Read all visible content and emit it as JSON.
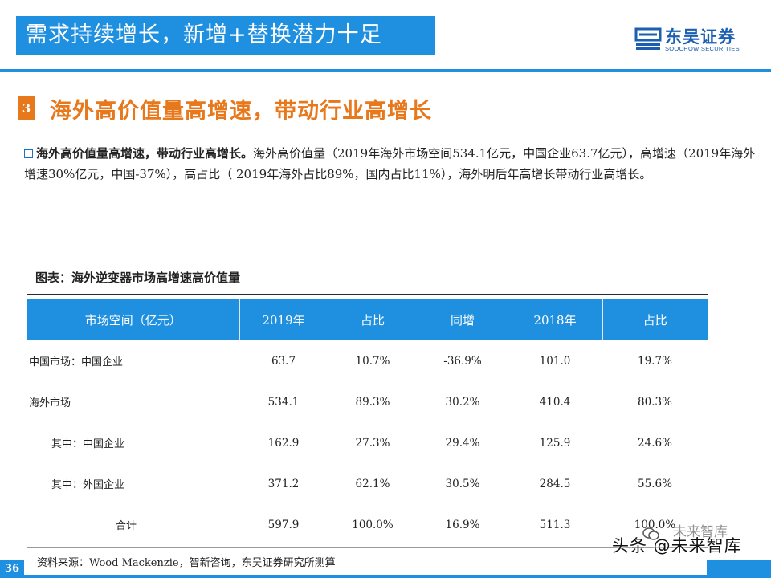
{
  "header": {
    "title": "需求持续增长，新增+替换潜力十足",
    "logo_cn": "东吴证券",
    "logo_en": "SOOCHOW SECURITIES"
  },
  "section": {
    "number": "3",
    "title": "海外高价值量高增速，带动行业高增长"
  },
  "paragraph": {
    "lead": "海外高价值量高增速，带动行业高增长。",
    "body": "海外高价值量（2019年海外市场空间534.1亿元，中国企业63.7亿元），高增速（2019年海外增速30%亿元，中国-37%），高占比（ 2019年海外占比89%，国内占比11%），海外明后年高增长带动行业高增长。"
  },
  "figure": {
    "title": "图表：海外逆变器市场高增速高价值量"
  },
  "table": {
    "headers": [
      "市场空间（亿元）",
      "2019年",
      "占比",
      "同增",
      "2018年",
      "占比"
    ],
    "rows": [
      [
        "中国市场：中国企业",
        "63.7",
        "10.7%",
        "-36.9%",
        "101.0",
        "19.7%"
      ],
      [
        "海外市场",
        "534.1",
        "89.3%",
        "30.2%",
        "410.4",
        "80.3%"
      ],
      [
        "其中：中国企业",
        "162.9",
        "27.3%",
        "29.4%",
        "125.9",
        "24.6%"
      ],
      [
        "其中：外国企业",
        "371.2",
        "62.1%",
        "30.5%",
        "284.5",
        "55.6%"
      ],
      [
        "合计",
        "597.9",
        "100.0%",
        "16.9%",
        "511.3",
        "100.0%"
      ]
    ]
  },
  "footer": {
    "source": "资料来源：Wood Mackenzie，智新咨询，东吴证券研究所测算",
    "page": "36",
    "watermark": "头条 @未来智库",
    "watermark_faint": "未来智库"
  },
  "colors": {
    "brand_blue": "#1f8fe0",
    "accent_orange": "#e8781c"
  }
}
